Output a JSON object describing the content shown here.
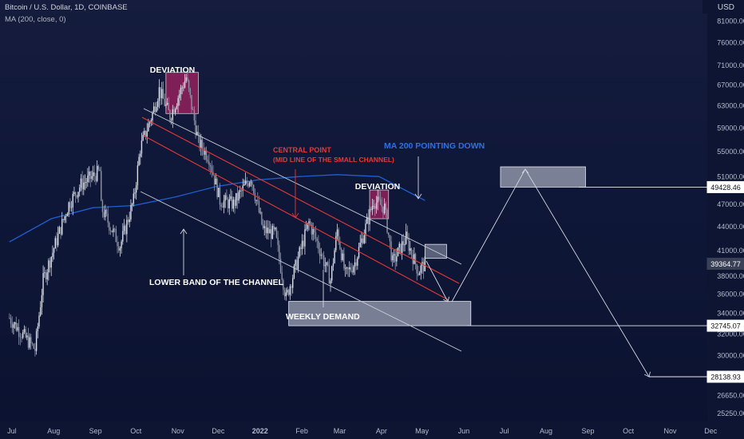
{
  "header": {
    "symbol_line": "Bitcoin / U.S. Dollar, 1D, COINBASE",
    "indicator_line": "MA (200, close, 0)",
    "currency": "USD"
  },
  "chart_data": {
    "type": "candlestick",
    "title": "Bitcoin / U.S. Dollar, 1D, COINBASE",
    "ylabel": "USD",
    "y_scale": "log",
    "y_ticks": [
      "81000.00",
      "76000.00",
      "71000.00",
      "67000.00",
      "63000.00",
      "59000.00",
      "55000.00",
      "51000.00",
      "47000.00",
      "44000.00",
      "41000.00",
      "38000.00",
      "36000.00",
      "34000.00",
      "32000.00",
      "30000.00",
      "28000.00",
      "26650.00",
      "25250.00"
    ],
    "x_ticks": [
      "Jul",
      "Aug",
      "Sep",
      "Oct",
      "Nov",
      "Dec",
      "2022",
      "Feb",
      "Mar",
      "Apr",
      "May",
      "Jun",
      "Jul",
      "Aug",
      "Sep",
      "Oct",
      "Nov",
      "Dec"
    ],
    "price_labels": [
      {
        "text": "49428.46",
        "value": 49428.46,
        "style": "outline"
      },
      {
        "text": "39364.77",
        "value": 39364.77,
        "style": "current"
      },
      {
        "text": "32745.07",
        "value": 32745.07,
        "style": "outline"
      },
      {
        "text": "28138.93",
        "value": 28138.93,
        "style": "outline"
      }
    ],
    "price_path": [
      [
        "2021-07-01",
        33500
      ],
      [
        "2021-07-20",
        30500
      ],
      [
        "2021-07-26",
        37500
      ],
      [
        "2021-08-14",
        47000
      ],
      [
        "2021-08-23",
        49800
      ],
      [
        "2021-09-06",
        51800
      ],
      [
        "2021-09-07",
        46500
      ],
      [
        "2021-09-21",
        41500
      ],
      [
        "2021-10-01",
        47500
      ],
      [
        "2021-10-06",
        55500
      ],
      [
        "2021-10-15",
        61500
      ],
      [
        "2021-10-20",
        66000
      ],
      [
        "2021-10-28",
        61000
      ],
      [
        "2021-11-09",
        68500
      ],
      [
        "2021-11-18",
        56500
      ],
      [
        "2021-11-26",
        54000
      ],
      [
        "2021-12-04",
        47500
      ],
      [
        "2021-12-14",
        47000
      ],
      [
        "2021-12-27",
        51000
      ],
      [
        "2022-01-05",
        43500
      ],
      [
        "2022-01-14",
        43000
      ],
      [
        "2022-01-22",
        35500
      ],
      [
        "2022-01-24",
        36500
      ],
      [
        "2022-02-08",
        44500
      ],
      [
        "2022-02-14",
        42000
      ],
      [
        "2022-02-24",
        37500
      ],
      [
        "2022-03-01",
        43500
      ],
      [
        "2022-03-07",
        38000
      ],
      [
        "2022-03-14",
        39500
      ],
      [
        "2022-03-28",
        47500
      ],
      [
        "2022-04-05",
        46500
      ],
      [
        "2022-04-11",
        39500
      ],
      [
        "2022-04-21",
        42500
      ],
      [
        "2022-04-30",
        38500
      ],
      [
        "2022-05-05",
        39364.77
      ]
    ],
    "ma200_path": [
      [
        "2021-07-01",
        42000
      ],
      [
        "2021-08-01",
        45000
      ],
      [
        "2021-09-01",
        46500
      ],
      [
        "2021-10-01",
        46800
      ],
      [
        "2021-11-01",
        48000
      ],
      [
        "2021-12-01",
        49500
      ],
      [
        "2022-01-01",
        50500
      ],
      [
        "2022-02-01",
        51000
      ],
      [
        "2022-03-01",
        51300
      ],
      [
        "2022-04-01",
        51000
      ],
      [
        "2022-05-05",
        47500
      ]
    ],
    "annotations": [
      {
        "text": "DEVIATION",
        "color": "#ffffff"
      },
      {
        "text": "DEVIATION",
        "color": "#ffffff"
      },
      {
        "text": "CENTRAL POINT",
        "color": "#e53935"
      },
      {
        "text": "(MID LINE OF THE SMALL CHANNEL)",
        "color": "#e53935"
      },
      {
        "text": "MA 200 POINTING DOWN",
        "color": "#2f6fe0"
      },
      {
        "text": "LOWER BAND OF THE CHANNEL",
        "color": "#ffffff"
      },
      {
        "text": "WEEKLY DEMAND",
        "color": "#ffffff"
      }
    ],
    "zones": [
      {
        "name": "deviation-1",
        "from": "2021-10-25",
        "to": "2021-11-18",
        "low": 61500,
        "high": 69500
      },
      {
        "name": "deviation-2",
        "from": "2022-03-25",
        "to": "2022-04-08",
        "low": 45000,
        "high": 49000
      },
      {
        "name": "weekly-demand",
        "from": "2022-01-24",
        "to": "2022-06-08",
        "low": 32745.07,
        "high": 35200
      },
      {
        "name": "small-box",
        "from": "2022-05-05",
        "to": "2022-05-21",
        "low": 40000,
        "high": 41700
      },
      {
        "name": "target-box",
        "from": "2022-06-30",
        "to": "2022-09-01",
        "low": 49428.46,
        "high": 52500
      }
    ],
    "colors": {
      "up": "#d9dde6",
      "down": "#8d93a4",
      "ma": "#1f5fd1",
      "red_line": "#e53935",
      "channel": "#c9ccd6"
    }
  }
}
